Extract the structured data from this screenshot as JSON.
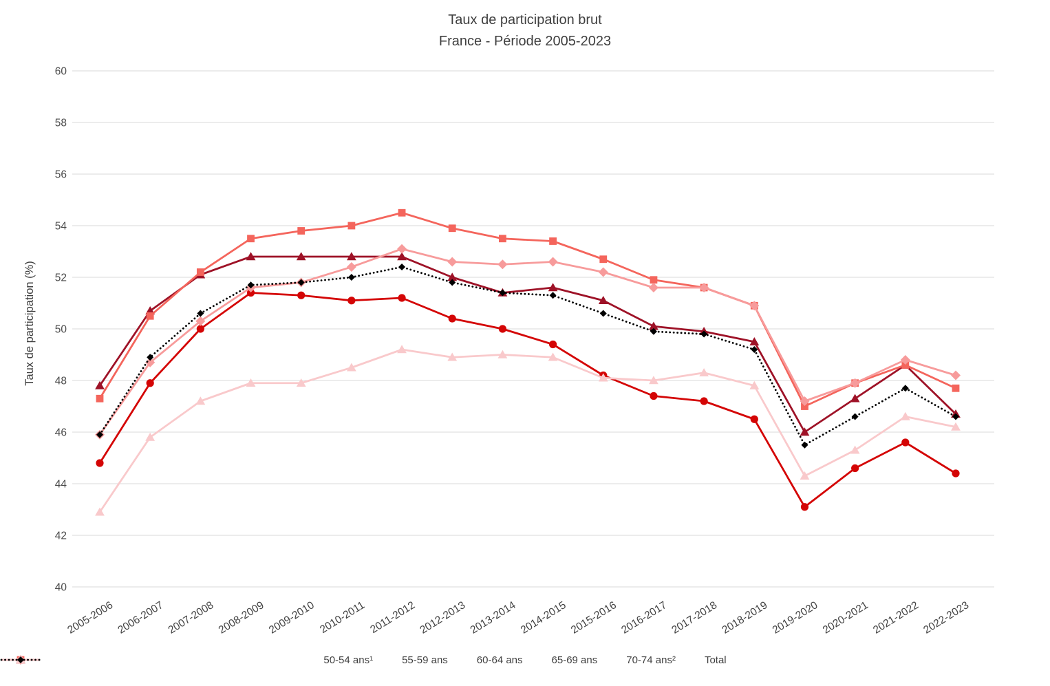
{
  "title": {
    "line1": "Taux de participation brut",
    "line2": "France - Période 2005-2023"
  },
  "y_axis": {
    "label": "Taux de participation (%)",
    "min": 40,
    "max": 60,
    "step": 2,
    "tick_labels": [
      "60",
      "58",
      "56",
      "54",
      "52",
      "50",
      "48",
      "46",
      "44",
      "42",
      "40"
    ]
  },
  "chart_data": {
    "type": "line",
    "title": "Taux de participation brut",
    "subtitle": "France - Période 2005-2023",
    "ylabel": "Taux de participation (%)",
    "xlabel": "",
    "ylim": [
      40,
      60
    ],
    "y_step": 2,
    "grid": true,
    "legend_position": "bottom",
    "categories": [
      "2005-2006",
      "2006-2007",
      "2007-2008",
      "2008-2009",
      "2009-2010",
      "2010-2011",
      "2011-2012",
      "2012-2013",
      "2013-2014",
      "2014-2015",
      "2015-2016",
      "2016-2017",
      "2017-2018",
      "2018-2019",
      "2019-2020",
      "2020-2021",
      "2021-2022",
      "2022-2023"
    ],
    "series": [
      {
        "name": "50-54 ans¹",
        "marker": "triangle",
        "line_style": "solid",
        "color": "#9E1227",
        "values": [
          47.8,
          50.7,
          52.1,
          52.8,
          52.8,
          52.8,
          52.8,
          52.0,
          51.4,
          51.6,
          51.1,
          50.1,
          49.9,
          49.5,
          46.0,
          47.3,
          48.6,
          46.7
        ]
      },
      {
        "name": "55-59 ans",
        "marker": "circle",
        "line_style": "solid",
        "color": "#D40505",
        "values": [
          44.8,
          47.9,
          50.0,
          51.4,
          51.3,
          51.1,
          51.2,
          50.4,
          50.0,
          49.4,
          48.2,
          47.4,
          47.2,
          46.5,
          43.1,
          44.6,
          45.6,
          44.4
        ]
      },
      {
        "name": "60-64 ans",
        "marker": "square",
        "line_style": "solid",
        "color": "#F4655C",
        "values": [
          47.3,
          50.5,
          52.2,
          53.5,
          53.8,
          54.0,
          54.5,
          53.9,
          53.5,
          53.4,
          52.7,
          51.9,
          51.6,
          50.9,
          47.0,
          47.9,
          48.6,
          47.7
        ]
      },
      {
        "name": "65-69 ans",
        "marker": "diamond",
        "line_style": "solid",
        "color": "#F79B9B",
        "values": [
          45.9,
          48.7,
          50.3,
          51.6,
          51.8,
          52.4,
          53.1,
          52.6,
          52.5,
          52.6,
          52.2,
          51.6,
          51.6,
          50.9,
          47.2,
          47.9,
          48.8,
          48.2
        ]
      },
      {
        "name": "70-74 ans²",
        "marker": "triangle",
        "line_style": "solid",
        "color": "#F9C9CB",
        "values": [
          42.9,
          45.8,
          47.2,
          47.9,
          47.9,
          48.5,
          49.2,
          48.9,
          49.0,
          48.9,
          48.1,
          48.0,
          48.3,
          47.8,
          44.3,
          45.3,
          46.6,
          46.2
        ]
      },
      {
        "name": "Total",
        "marker": "diamond-small",
        "line_style": "dotted",
        "color": "#000000",
        "values": [
          45.9,
          48.9,
          50.6,
          51.7,
          51.8,
          52.0,
          52.4,
          51.8,
          51.4,
          51.3,
          50.6,
          49.9,
          49.8,
          49.2,
          45.5,
          46.6,
          47.7,
          46.6
        ]
      }
    ],
    "colors": {
      "grid": "#D9D9D9",
      "axis_text": "#4a4a4a",
      "title_text": "#3f3f3f"
    }
  }
}
